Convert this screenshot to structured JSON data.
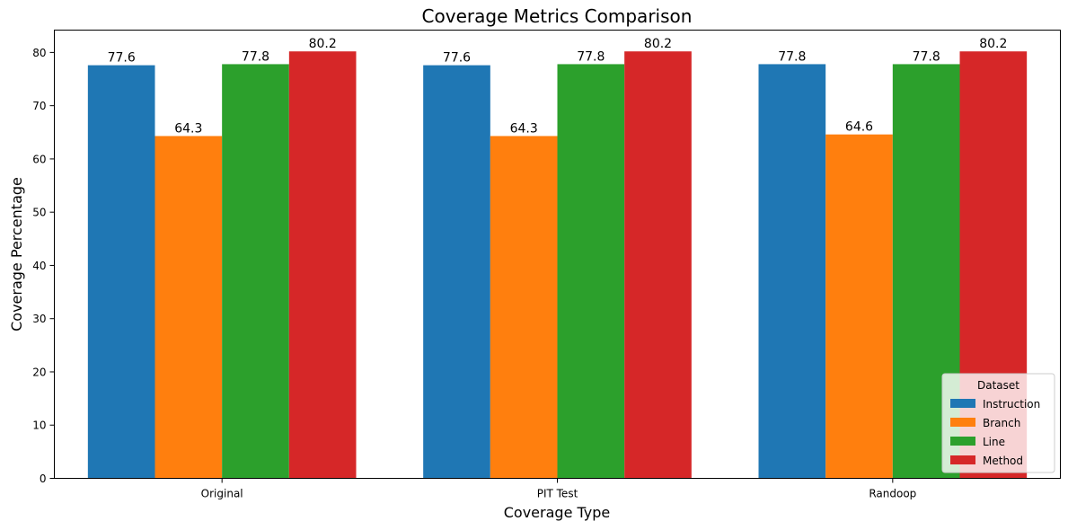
{
  "chart_data": {
    "type": "bar",
    "title": "Coverage Metrics Comparison",
    "xlabel": "Coverage Type",
    "ylabel": "Coverage Percentage",
    "categories": [
      "Original",
      "PIT Test",
      "Randoop"
    ],
    "ylim": [
      0,
      84.2
    ],
    "yticks": [
      0,
      10,
      20,
      30,
      40,
      50,
      60,
      70,
      80
    ],
    "grid": false,
    "legend": {
      "title": "Dataset",
      "placement": "lower-right"
    },
    "series": [
      {
        "name": "Instruction",
        "color": "#1f77b4",
        "values": [
          77.6,
          77.6,
          77.8
        ]
      },
      {
        "name": "Branch",
        "color": "#ff7f0e",
        "values": [
          64.3,
          64.3,
          64.6
        ]
      },
      {
        "name": "Line",
        "color": "#2ca02c",
        "values": [
          77.8,
          77.8,
          77.8
        ]
      },
      {
        "name": "Method",
        "color": "#d62728",
        "values": [
          80.2,
          80.2,
          80.2
        ]
      }
    ]
  }
}
